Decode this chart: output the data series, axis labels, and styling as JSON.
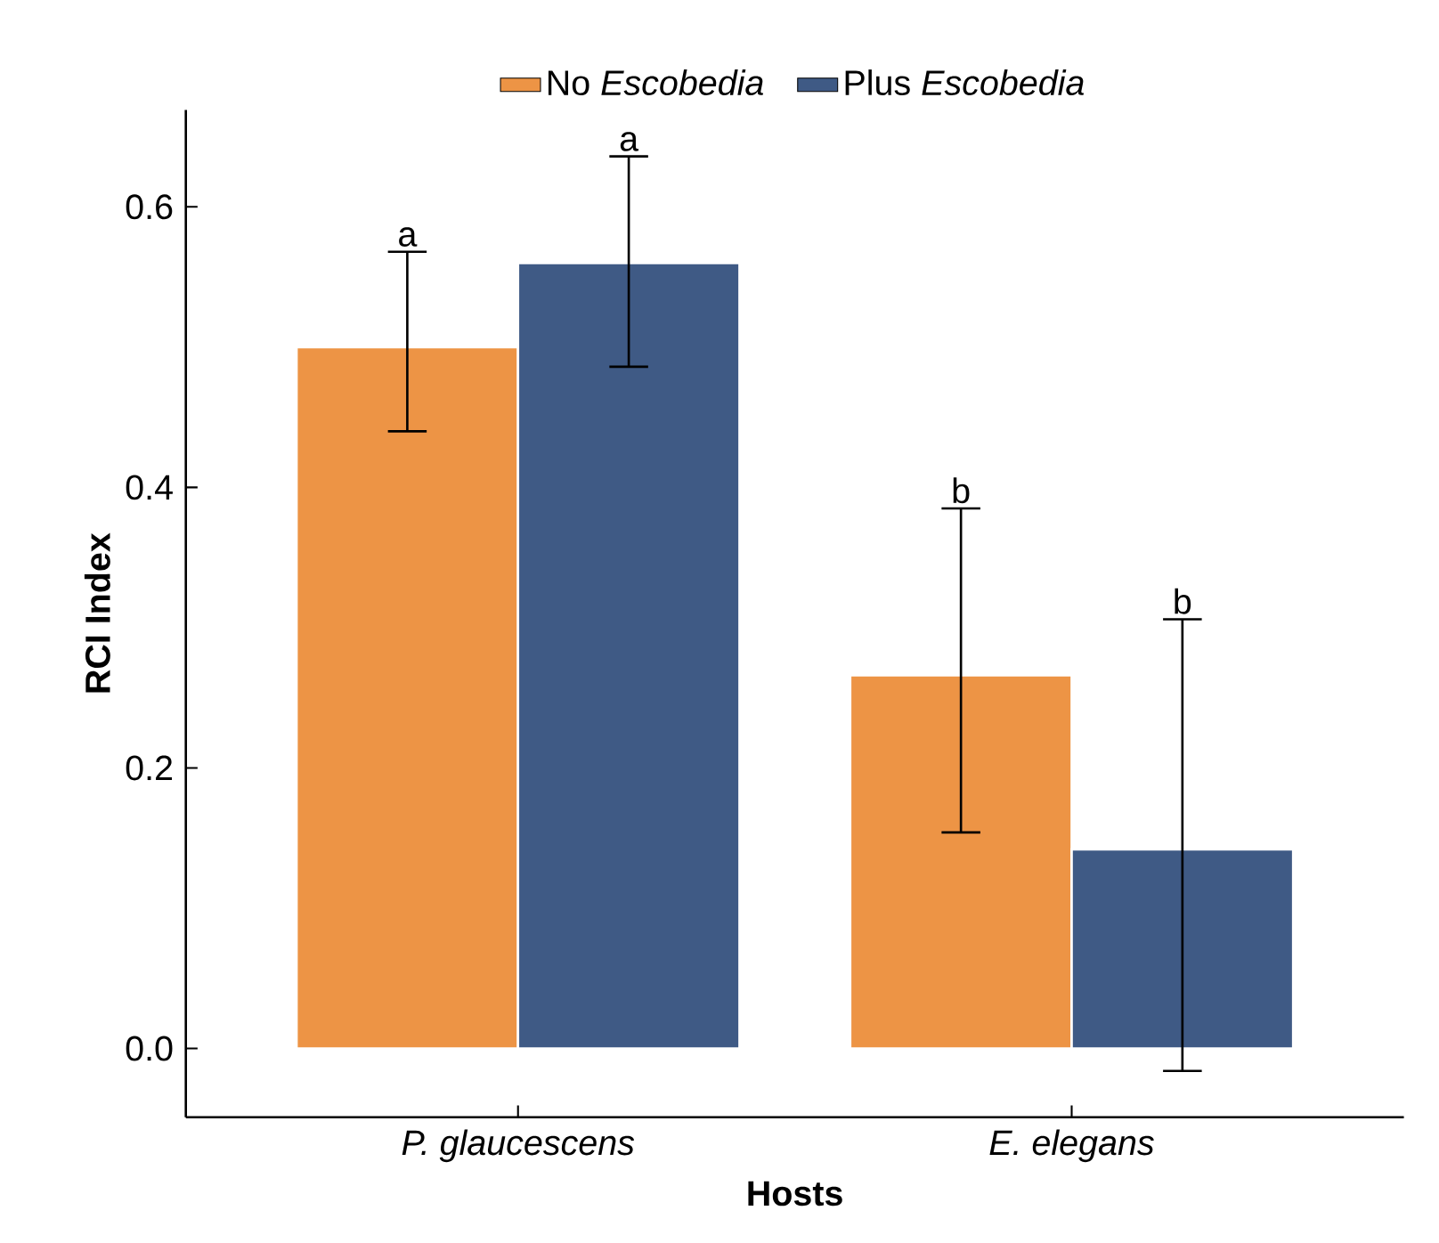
{
  "chart_data": {
    "type": "bar",
    "xlabel": "Hosts",
    "ylabel": "RCI Index",
    "categories": [
      "P. glaucescens",
      "E. elegans"
    ],
    "series": [
      {
        "name": "No *Escobedia*",
        "color": "#ed9445",
        "values": [
          0.5,
          0.266
        ],
        "errors": [
          [
            0.44,
            0.568
          ],
          [
            0.154,
            0.385
          ]
        ]
      },
      {
        "name": "Plus *Escobedia*",
        "color": "#3f5a85",
        "values": [
          0.56,
          0.142
        ],
        "errors": [
          [
            0.486,
            0.636
          ],
          [
            -0.016,
            0.306
          ]
        ]
      }
    ],
    "ylim": [
      -0.049,
      0.669
    ],
    "yticks": [
      {
        "value": 0,
        "label": "0.0"
      },
      0.2,
      0.4,
      0.6
    ],
    "annotations": [
      "a",
      "a",
      "b",
      "b"
    ],
    "grid": false,
    "legend": "top"
  }
}
